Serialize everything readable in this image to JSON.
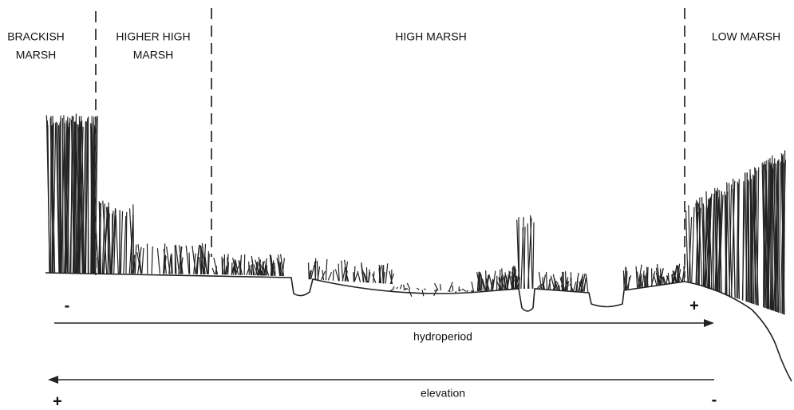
{
  "zones": [
    {
      "label_lines": [
        "BRACKISH",
        "MARSH"
      ]
    },
    {
      "label_lines": [
        "HIGHER HIGH",
        "MARSH"
      ]
    },
    {
      "label_lines": [
        "HIGH MARSH"
      ]
    },
    {
      "label_lines": [
        "LOW MARSH"
      ]
    }
  ],
  "axes": [
    {
      "label": "hydroperiod",
      "start_sign": "-",
      "end_sign": "+"
    },
    {
      "label": "elevation",
      "start_sign": "+",
      "end_sign": "-"
    }
  ]
}
